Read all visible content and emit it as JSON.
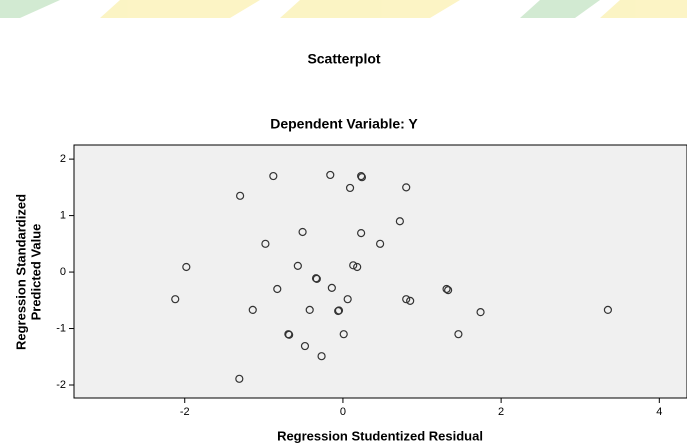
{
  "chart_data": {
    "type": "scatter",
    "title": "Scatterplot",
    "subtitle": "Dependent Variable: Y",
    "xlabel": "Regression Studentized Residual",
    "ylabel": [
      "Regression Standardized",
      "Predicted Value"
    ],
    "xlim": [
      -3.4,
      4.35
    ],
    "ylim": [
      -2.23,
      2.25
    ],
    "xticks": [
      -2,
      0,
      2,
      4
    ],
    "yticks": [
      -2,
      -1,
      0,
      1,
      2
    ],
    "series": [
      {
        "color": "#333333",
        "x": [
          -0.88,
          -0.16,
          0.23,
          0.24,
          0.09,
          0.8,
          -1.3,
          0.72,
          -0.51,
          0.23,
          -0.98,
          0.47,
          -1.98,
          -0.57,
          0.13,
          0.18,
          -0.34,
          -0.33,
          -0.83,
          -0.14,
          -2.12,
          0.06,
          0.8,
          0.85,
          1.31,
          1.33,
          -1.14,
          -0.42,
          -0.06,
          -0.05,
          1.74,
          3.35,
          -0.69,
          -0.68,
          0.01,
          1.46,
          -0.48,
          -0.27,
          -1.31
        ],
        "values": [
          1.7,
          1.72,
          1.7,
          1.68,
          1.49,
          1.5,
          1.35,
          0.9,
          0.71,
          0.69,
          0.5,
          0.5,
          0.09,
          0.11,
          0.12,
          0.09,
          -0.11,
          -0.12,
          -0.3,
          -0.28,
          -0.48,
          -0.48,
          -0.48,
          -0.51,
          -0.3,
          -0.32,
          -0.67,
          -0.67,
          -0.69,
          -0.68,
          -0.71,
          -0.67,
          -1.1,
          -1.11,
          -1.1,
          -1.1,
          -1.31,
          -1.49,
          -1.89
        ]
      }
    ],
    "plot_background": "#f0f0f0"
  }
}
